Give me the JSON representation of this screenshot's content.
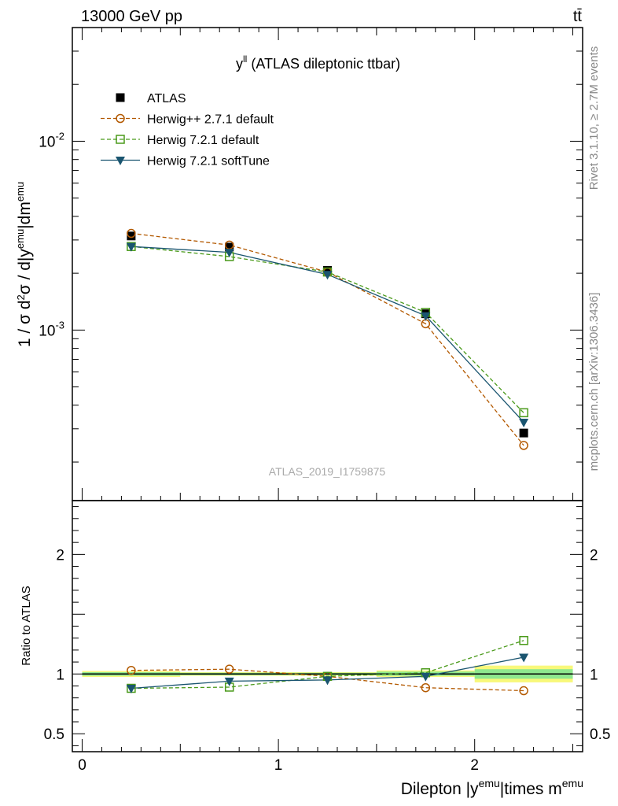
{
  "header": {
    "left": "13000 GeV pp",
    "right": "tt̄"
  },
  "side": {
    "rivet": "Rivet 3.1.10, ≥ 2.7M events",
    "mcplots": "mcplots.cern.ch [arXiv:1306.3436]"
  },
  "chart_data": [
    {
      "type": "line",
      "title": "y",
      "title_sup": "ll",
      "title_suffix": "(ATLAS dileptonic ttbar)",
      "watermark": "ATLAS_2019_I1759875",
      "ylabel": "1 / σ d²σ / d|y^emu|dm^emu",
      "yscale": "log",
      "ylim": [
        0.000125,
        0.04
      ],
      "xlim": [
        -0.05,
        2.55
      ],
      "y_tick_labels": [
        "10^-3",
        "10^-2"
      ],
      "legend_position": "top-left",
      "x": [
        0.25,
        0.75,
        1.25,
        1.75,
        2.25
      ],
      "series": [
        {
          "name": "ATLAS",
          "color": "#000000",
          "marker": "square-filled",
          "values": [
            0.00315,
            0.00275,
            0.00207,
            0.00122,
            0.000285
          ]
        },
        {
          "name": "Herwig++ 2.7.1 default",
          "color": "#b35900",
          "marker": "circle-open",
          "dash": "dashed",
          "values": [
            0.00325,
            0.00282,
            0.00203,
            0.00108,
            0.000245
          ]
        },
        {
          "name": "Herwig 7.2.1 default",
          "color": "#4a9a1a",
          "marker": "square-open",
          "dash": "dashed",
          "values": [
            0.00277,
            0.00245,
            0.00203,
            0.00124,
            0.000365
          ]
        },
        {
          "name": "Herwig 7.2.1 softTune",
          "color": "#1a5570",
          "marker": "triangle-down-filled",
          "dash": "solid",
          "values": [
            0.00277,
            0.00258,
            0.00197,
            0.00119,
            0.000325
          ]
        }
      ]
    },
    {
      "type": "line",
      "ylabel": "Ratio to ATLAS",
      "xlabel": "Dilepton |y^emu|times m^emu",
      "ylim": [
        0.35,
        2.45
      ],
      "xlim": [
        -0.05,
        2.55
      ],
      "x_tick_labels": [
        "0",
        "1",
        "2"
      ],
      "y_tick_labels": [
        "0.5",
        "1",
        "2"
      ],
      "x": [
        0.25,
        0.75,
        1.25,
        1.75,
        2.25
      ],
      "bins": [
        [
          0,
          0.5
        ],
        [
          0.5,
          1.0
        ],
        [
          1.0,
          1.5
        ],
        [
          1.5,
          2.0
        ],
        [
          2.0,
          2.5
        ]
      ],
      "band_outer": [
        [
          0.975,
          1.025
        ],
        [
          0.985,
          1.015
        ],
        [
          0.985,
          1.015
        ],
        [
          0.975,
          1.03
        ],
        [
          0.93,
          1.07
        ]
      ],
      "band_inner": [
        [
          0.985,
          1.015
        ],
        [
          0.99,
          1.01
        ],
        [
          0.99,
          1.01
        ],
        [
          0.985,
          1.02
        ],
        [
          0.96,
          1.04
        ]
      ],
      "series": [
        {
          "name": "Herwig++ 2.7.1 default",
          "values": [
            1.03,
            1.04,
            0.98,
            0.885,
            0.86
          ]
        },
        {
          "name": "Herwig 7.2.1 default",
          "values": [
            0.88,
            0.89,
            0.98,
            1.01,
            1.28
          ]
        },
        {
          "name": "Herwig 7.2.1 softTune",
          "values": [
            0.88,
            0.94,
            0.95,
            0.98,
            1.14
          ]
        }
      ]
    }
  ]
}
